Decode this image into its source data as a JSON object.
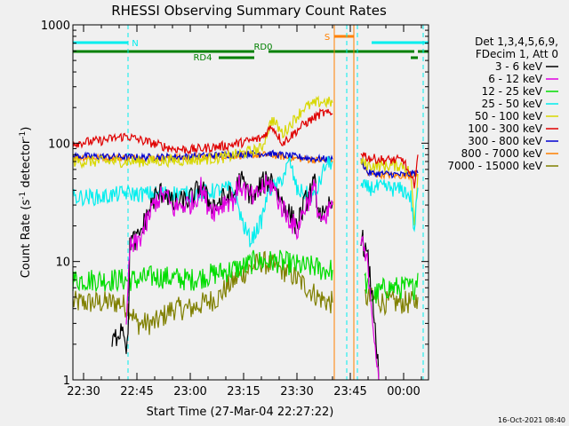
{
  "chart_data": {
    "type": "line",
    "title": "RHESSI Observing Summary Count Rates",
    "xlabel": "Start Time (27-Mar-04 22:27:22)",
    "ylabel_main": "Count Rate (s",
    "ylabel_sup1": "-1",
    "ylabel_mid": " detector",
    "ylabel_sup2": "-1",
    "ylabel_end": ")",
    "y_scale": "log",
    "ylim": [
      1,
      1000
    ],
    "xlim_minutes": [
      -3,
      97
    ],
    "x_ticks": [
      {
        "label": "22:30",
        "m": 0
      },
      {
        "label": "22:45",
        "m": 15
      },
      {
        "label": "23:00",
        "m": 30
      },
      {
        "label": "23:15",
        "m": 45
      },
      {
        "label": "23:30",
        "m": 60
      },
      {
        "label": "23:45",
        "m": 75
      },
      {
        "label": "00:00",
        "m": 90
      }
    ],
    "y_ticks": [
      {
        "label": "1",
        "v": 1
      },
      {
        "label": "10",
        "v": 10
      },
      {
        "label": "100",
        "v": 100
      },
      {
        "label": "1000",
        "v": 1000
      }
    ],
    "legend": {
      "header": [
        "Det 1,3,4,5,6,9,",
        "FDecim 1, Att 0"
      ],
      "entries": [
        {
          "label": "3 - 6 keV",
          "color": "#000000"
        },
        {
          "label": "6 - 12 keV",
          "color": "#e000e0"
        },
        {
          "label": "12 - 25 keV",
          "color": "#00dd00"
        },
        {
          "label": "25 - 50 keV",
          "color": "#00eeee"
        },
        {
          "label": "50 - 100 keV",
          "color": "#d8d800"
        },
        {
          "label": "100 - 300 keV",
          "color": "#e00000"
        },
        {
          "label": "300 - 800 keV",
          "color": "#0000d0"
        },
        {
          "label": "800 - 7000 keV",
          "color": "#ff8000"
        },
        {
          "label": "7000 - 15000 keV",
          "color": "#808000"
        }
      ]
    },
    "flags": [
      {
        "label": "N",
        "color": "#00eeee",
        "segments": [
          [
            -3,
            12.5
          ],
          [
            81,
            97
          ]
        ]
      },
      {
        "label": "S",
        "color": "#ff8000",
        "segments": [
          [
            70.5,
            76
          ]
        ]
      },
      {
        "label": "RD0",
        "color": "#008000",
        "segments": [
          [
            -3,
            48
          ],
          [
            52,
            93
          ],
          [
            94,
            97
          ]
        ]
      },
      {
        "label": "RD4",
        "color": "#008000",
        "segments": [
          [
            38,
            48
          ],
          [
            92,
            94
          ]
        ]
      }
    ],
    "markers": [
      {
        "m": 12.5,
        "color": "#00eeee",
        "style": "dashed"
      },
      {
        "m": 74,
        "color": "#00eeee",
        "style": "dashed"
      },
      {
        "m": 77,
        "color": "#00eeee",
        "style": "dashed"
      },
      {
        "m": 95.5,
        "color": "#00eeee",
        "style": "dashed"
      },
      {
        "m": 70.5,
        "color": "#ff8000",
        "style": "solid"
      },
      {
        "m": 76,
        "color": "#ff8000",
        "style": "solid"
      }
    ],
    "series": [
      {
        "name": "7000 - 15000 keV",
        "color": "#808000",
        "noise": 0.1,
        "points": [
          [
            -3,
            4.5
          ],
          [
            5,
            4.5
          ],
          [
            10,
            4.5
          ],
          [
            13,
            4
          ],
          [
            15,
            3
          ],
          [
            20,
            3
          ],
          [
            25,
            4
          ],
          [
            30,
            4
          ],
          [
            38,
            5
          ],
          [
            40,
            6
          ],
          [
            45,
            8
          ],
          [
            50,
            10
          ],
          [
            58,
            8
          ],
          [
            63,
            6
          ],
          [
            66,
            5
          ],
          [
            69,
            4.5
          ],
          [
            70,
            4.5
          ],
          null,
          [
            79,
            5
          ],
          [
            85,
            4.5
          ],
          [
            90,
            4.5
          ],
          [
            93,
            4.5
          ],
          [
            94,
            5
          ]
        ]
      },
      {
        "name": "12 - 25 keV",
        "color": "#00dd00",
        "noise": 0.1,
        "points": [
          [
            -3,
            7
          ],
          [
            5,
            7
          ],
          [
            12,
            7
          ],
          [
            15,
            7
          ],
          [
            20,
            7.5
          ],
          [
            30,
            7
          ],
          [
            38,
            8
          ],
          [
            45,
            9
          ],
          [
            48,
            10
          ],
          [
            55,
            10
          ],
          [
            62,
            9
          ],
          [
            65,
            9
          ],
          [
            67,
            8.5
          ],
          [
            70,
            8.5
          ],
          null,
          [
            79,
            7
          ],
          [
            81,
            5
          ],
          [
            85,
            6
          ],
          [
            90,
            6
          ],
          [
            93,
            6
          ],
          [
            94,
            8
          ]
        ]
      },
      {
        "name": "800 - 7000 keV",
        "color": "#ff8000",
        "noise": 0.03,
        "points": [
          [
            -3,
            76
          ],
          [
            15,
            75
          ],
          [
            30,
            76
          ],
          [
            40,
            78
          ],
          [
            52,
            80
          ],
          [
            58,
            75
          ],
          [
            65,
            72
          ],
          [
            70,
            71
          ],
          null,
          [
            78,
            70
          ],
          [
            80,
            55
          ],
          [
            85,
            54
          ],
          [
            90,
            53
          ],
          [
            94,
            55
          ]
        ]
      },
      {
        "name": "300 - 800 keV",
        "color": "#0000d0",
        "noise": 0.03,
        "points": [
          [
            -3,
            78
          ],
          [
            15,
            76
          ],
          [
            30,
            77
          ],
          [
            40,
            80
          ],
          [
            52,
            82
          ],
          [
            58,
            78
          ],
          [
            65,
            74
          ],
          [
            70,
            73
          ],
          null,
          [
            78,
            72
          ],
          [
            80,
            56
          ],
          [
            85,
            55
          ],
          [
            90,
            54
          ],
          [
            94,
            56
          ]
        ]
      },
      {
        "name": "50 - 100 keV",
        "color": "#d8d800",
        "noise": 0.05,
        "points": [
          [
            -3,
            70
          ],
          [
            15,
            70
          ],
          [
            30,
            72
          ],
          [
            40,
            76
          ],
          [
            50,
            90
          ],
          [
            53,
            160
          ],
          [
            56,
            120
          ],
          [
            62,
            200
          ],
          [
            67,
            225
          ],
          [
            70,
            220
          ],
          null,
          [
            78,
            70
          ],
          [
            80,
            65
          ],
          [
            85,
            64
          ],
          [
            90,
            65
          ],
          [
            92,
            55
          ],
          [
            93,
            20
          ],
          [
            94,
            55
          ]
        ]
      },
      {
        "name": "100 - 300 keV",
        "color": "#e00000",
        "noise": 0.04,
        "points": [
          [
            -3,
            100
          ],
          [
            5,
            105
          ],
          [
            12,
            115
          ],
          [
            15,
            108
          ],
          [
            25,
            90
          ],
          [
            30,
            88
          ],
          [
            40,
            95
          ],
          [
            47,
            105
          ],
          [
            50,
            110
          ],
          [
            53,
            140
          ],
          [
            56,
            100
          ],
          [
            62,
            145
          ],
          [
            67,
            180
          ],
          [
            70,
            175
          ],
          null,
          [
            78,
            85
          ],
          [
            80,
            75
          ],
          [
            85,
            72
          ],
          [
            90,
            72
          ],
          [
            92,
            50
          ],
          [
            93,
            45
          ],
          [
            94,
            80
          ]
        ]
      },
      {
        "name": "25 - 50 keV",
        "color": "#00eeee",
        "noise": 0.07,
        "points": [
          [
            -3,
            35
          ],
          [
            5,
            35
          ],
          [
            12,
            38
          ],
          [
            15,
            37
          ],
          [
            25,
            38
          ],
          [
            30,
            37
          ],
          [
            38,
            40
          ],
          [
            42,
            42
          ],
          [
            45,
            20
          ],
          [
            47,
            15
          ],
          [
            50,
            22
          ],
          [
            52,
            40
          ],
          [
            55,
            45
          ],
          [
            58,
            70
          ],
          [
            60,
            40
          ],
          [
            65,
            35
          ],
          [
            68,
            65
          ],
          [
            70,
            70
          ],
          null,
          [
            78,
            42
          ],
          [
            80,
            42
          ],
          [
            85,
            42
          ],
          [
            90,
            40
          ],
          [
            92,
            35
          ],
          [
            93,
            18
          ],
          [
            94,
            42
          ]
        ]
      },
      {
        "name": "3 - 6 keV",
        "color": "#000000",
        "noise": 0.1,
        "points": [
          [
            8,
            2
          ],
          [
            11,
            3
          ],
          [
            12,
            2
          ],
          [
            12.5,
            2
          ],
          [
            13,
            15
          ],
          [
            15,
            15
          ],
          [
            18,
            25
          ],
          [
            20,
            35
          ],
          [
            23,
            40
          ],
          [
            25,
            30
          ],
          [
            28,
            32
          ],
          [
            31,
            35
          ],
          [
            33,
            45
          ],
          [
            35,
            32
          ],
          [
            37,
            30
          ],
          [
            40,
            35
          ],
          [
            42,
            35
          ],
          [
            44,
            50
          ],
          [
            46,
            40
          ],
          [
            48,
            35
          ],
          [
            50,
            45
          ],
          [
            53,
            50
          ],
          [
            55,
            35
          ],
          [
            57,
            28
          ],
          [
            58,
            25
          ],
          [
            60,
            20
          ],
          [
            62,
            30
          ],
          [
            64,
            40
          ],
          [
            65,
            45
          ],
          [
            66,
            28
          ],
          [
            68,
            22
          ],
          [
            69,
            30
          ],
          [
            70,
            32
          ],
          null,
          [
            78,
            17
          ],
          [
            80,
            10
          ],
          [
            82,
            3
          ],
          [
            83,
            1
          ]
        ]
      },
      {
        "name": "6 - 12 keV",
        "color": "#e000e0",
        "noise": 0.1,
        "points": [
          [
            12,
            2.5
          ],
          [
            13,
            13
          ],
          [
            15,
            14
          ],
          [
            18,
            22
          ],
          [
            20,
            32
          ],
          [
            23,
            37
          ],
          [
            25,
            28
          ],
          [
            28,
            30
          ],
          [
            31,
            32
          ],
          [
            33,
            42
          ],
          [
            35,
            30
          ],
          [
            37,
            27
          ],
          [
            40,
            33
          ],
          [
            42,
            33
          ],
          [
            44,
            45
          ],
          [
            46,
            38
          ],
          [
            48,
            33
          ],
          [
            50,
            42
          ],
          [
            53,
            45
          ],
          [
            55,
            32
          ],
          [
            57,
            25
          ],
          [
            58,
            23
          ],
          [
            60,
            18
          ],
          [
            62,
            28
          ],
          [
            64,
            37
          ],
          [
            65,
            42
          ],
          [
            66,
            26
          ],
          [
            68,
            20
          ],
          [
            69,
            28
          ],
          [
            70,
            30
          ],
          null,
          [
            78,
            15
          ],
          [
            80,
            9
          ],
          [
            82,
            2
          ],
          [
            83,
            1
          ]
        ]
      }
    ]
  },
  "footer": {
    "timestamp": "16-Oct-2021 08:40"
  }
}
